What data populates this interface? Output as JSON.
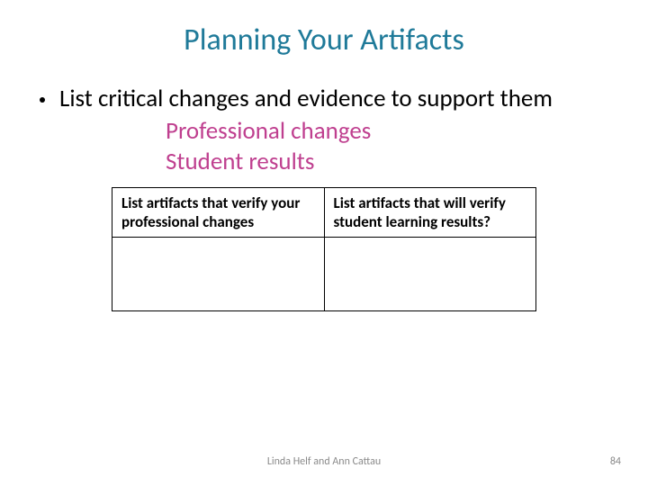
{
  "slide": {
    "title": "Planning Your Artifacts",
    "title_color": "#1f7a99",
    "title_fontsize": 34,
    "bullet": {
      "text": "List critical changes and evidence to support them",
      "color": "#000000",
      "fontsize": 27
    },
    "sub_items": {
      "line1": "Professional changes",
      "line2": "Student results",
      "color": "#bf3f8f",
      "fontsize": 27
    },
    "table": {
      "border_color": "#000000",
      "header_fontsize": 17,
      "columns": [
        "List artifacts  that verify your professional changes",
        "List artifacts that will verify student learning results?"
      ],
      "rows": [
        [
          "",
          ""
        ]
      ]
    },
    "footer": {
      "center": "Linda Helf and Ann Cattau",
      "page_number": "84",
      "color": "#8a8a8a",
      "fontsize": 12
    },
    "background_color": "#ffffff"
  }
}
